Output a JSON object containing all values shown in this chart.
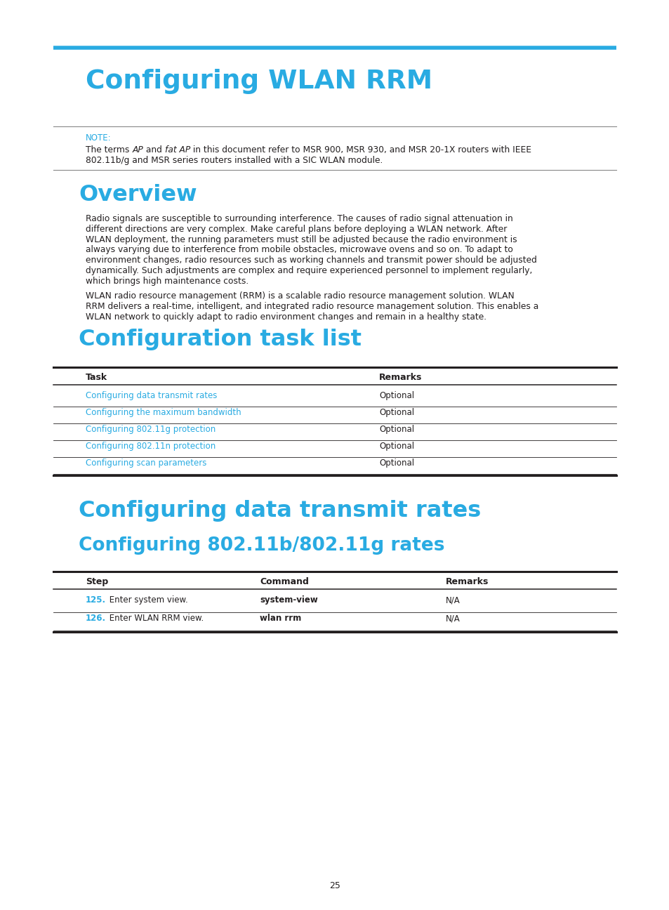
{
  "bg_color": "#ffffff",
  "cyan_color": "#29abe2",
  "black_color": "#231f20",
  "gray_line_color": "#888888",
  "page_number": "25",
  "main_title": "Configuring WLAN RRM",
  "section1_title": "Overview",
  "note_label": "NOTE:",
  "section2_title": "Configuration task list",
  "table1_headers": [
    "Task",
    "Remarks"
  ],
  "table1_rows": [
    [
      "Configuring data transmit rates",
      "Optional"
    ],
    [
      "Configuring the maximum bandwidth",
      "Optional"
    ],
    [
      "Configuring 802.11g protection",
      "Optional"
    ],
    [
      "Configuring 802.11n protection",
      "Optional"
    ],
    [
      "Configuring scan parameters",
      "Optional"
    ]
  ],
  "section3_title": "Configuring data transmit rates",
  "section4_title": "Configuring 802.11b/802.11g rates",
  "table2_headers": [
    "Step",
    "Command",
    "Remarks"
  ],
  "table2_step_nums": [
    "125",
    "126"
  ],
  "table2_step_texts": [
    "Enter system view.",
    "Enter WLAN RRM view."
  ],
  "table2_commands": [
    "system-view",
    "wlan rrm"
  ],
  "table2_remarks": [
    "N/A",
    "N/A"
  ],
  "overview_para1_lines": [
    "Radio signals are susceptible to surrounding interference. The causes of radio signal attenuation in",
    "different directions are very complex. Make careful plans before deploying a WLAN network. After",
    "WLAN deployment, the running parameters must still be adjusted because the radio environment is",
    "always varying due to interference from mobile obstacles, microwave ovens and so on. To adapt to",
    "environment changes, radio resources such as working channels and transmit power should be adjusted",
    "dynamically. Such adjustments are complex and require experienced personnel to implement regularly,",
    "which brings high maintenance costs."
  ],
  "overview_para2_lines": [
    "WLAN radio resource management (RRM) is a scalable radio resource management solution. WLAN",
    "RRM delivers a real-time, intelligent, and integrated radio resource management solution. This enables a",
    "WLAN network to quickly adapt to radio environment changes and remain in a healthy state."
  ]
}
